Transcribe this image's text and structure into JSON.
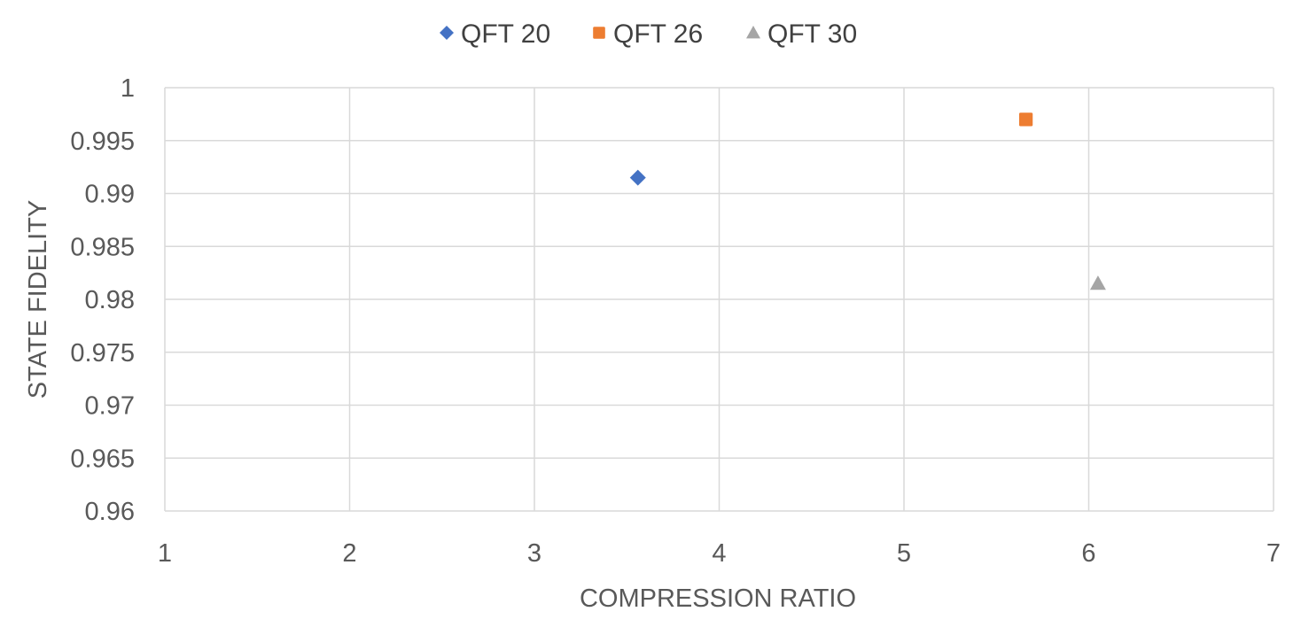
{
  "chart_data": {
    "type": "scatter",
    "xlabel": "COMPRESSION RATIO",
    "ylabel": "STATE FIDELITY",
    "xlim": [
      1,
      7
    ],
    "ylim": [
      0.96,
      1
    ],
    "x_ticks": [
      1,
      2,
      3,
      4,
      5,
      6,
      7
    ],
    "y_ticks": [
      0.96,
      0.965,
      0.97,
      0.975,
      0.98,
      0.985,
      0.99,
      0.995,
      1
    ],
    "x_tick_labels": [
      "1",
      "2",
      "3",
      "4",
      "5",
      "6",
      "7"
    ],
    "y_tick_labels": [
      "0.96",
      "0.965",
      "0.97",
      "0.975",
      "0.98",
      "0.985",
      "0.99",
      "0.995",
      "1"
    ],
    "grid": true,
    "legend_position": "top",
    "series": [
      {
        "name": "QFT 20",
        "marker": "diamond",
        "color": "#4472C4",
        "points": [
          {
            "x": 3.56,
            "y": 0.9915
          }
        ]
      },
      {
        "name": "QFT 26",
        "marker": "square",
        "color": "#ED7D31",
        "points": [
          {
            "x": 5.66,
            "y": 0.997
          }
        ]
      },
      {
        "name": "QFT 30",
        "marker": "triangle",
        "color": "#A5A5A5",
        "points": [
          {
            "x": 6.05,
            "y": 0.9815
          }
        ]
      }
    ]
  }
}
